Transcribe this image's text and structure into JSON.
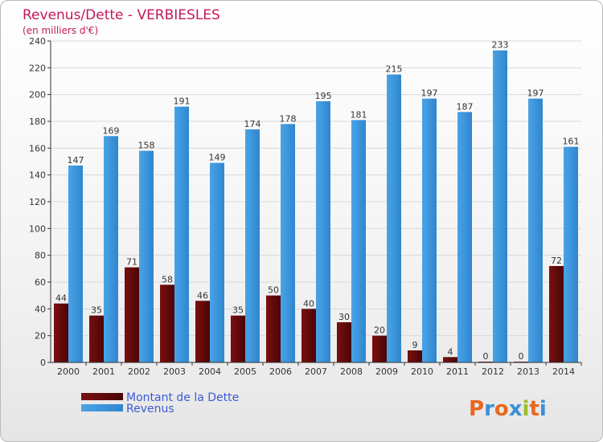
{
  "chart_data": {
    "type": "bar",
    "title": "Revenus/Dette - VERBIESLES",
    "subtitle": "(en milliers d'€)",
    "categories": [
      "2000",
      "2001",
      "2002",
      "2003",
      "2004",
      "2005",
      "2006",
      "2007",
      "2008",
      "2009",
      "2010",
      "2011",
      "2012",
      "2013",
      "2014"
    ],
    "series": [
      {
        "name": "Montant de la Dette",
        "color": "#7a0f10",
        "values": [
          44,
          35,
          71,
          58,
          46,
          35,
          50,
          40,
          30,
          20,
          9,
          4,
          0,
          0,
          72
        ]
      },
      {
        "name": "Revenus",
        "color": "#4aa3e6",
        "values": [
          147,
          169,
          158,
          191,
          149,
          174,
          178,
          195,
          181,
          215,
          197,
          187,
          233,
          197,
          161
        ]
      }
    ],
    "ylim": [
      0,
      240
    ],
    "yticks": [
      0,
      20,
      40,
      60,
      80,
      100,
      120,
      140,
      160,
      180,
      200,
      220,
      240
    ],
    "grid": true,
    "legend": "bottom-left"
  },
  "colors": {
    "title": "#c2185b",
    "legend_text": "#3b5bd6",
    "axis": "#333333",
    "grid": "#d9d9d9"
  },
  "logo": {
    "text": "Proxiti",
    "letter_colors": [
      "#e8681e",
      "#3a8fd6",
      "#e8681e",
      "#3a8fd6",
      "#9bbf2a",
      "#e8681e",
      "#3a8fd6"
    ]
  }
}
